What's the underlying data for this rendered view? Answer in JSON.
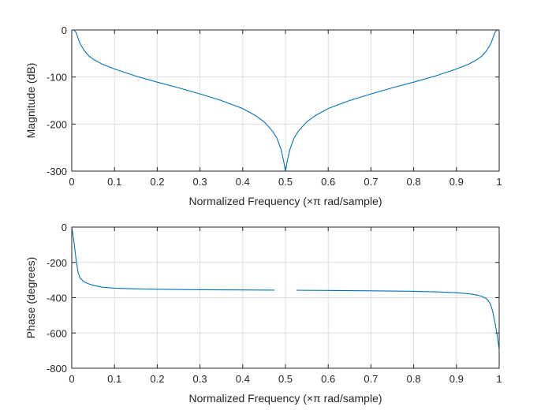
{
  "chart_data": [
    {
      "type": "line",
      "xlabel": "Normalized Frequency  (×π rad/sample)",
      "ylabel": "Magnitude (dB)",
      "xlim": [
        0,
        1
      ],
      "ylim": [
        -300,
        0
      ],
      "xticks": [
        "0",
        "0.1",
        "0.2",
        "0.3",
        "0.4",
        "0.5",
        "0.6",
        "0.7",
        "0.8",
        "0.9",
        "1"
      ],
      "yticks": [
        "0",
        "-100",
        "-200",
        "-300"
      ],
      "yticks_values": [
        0,
        -100,
        -200,
        -300
      ],
      "grid": true,
      "color": "#0072BD",
      "x": [
        0,
        0.005,
        0.01,
        0.015,
        0.02,
        0.03,
        0.04,
        0.05,
        0.07,
        0.1,
        0.15,
        0.2,
        0.25,
        0.3,
        0.35,
        0.4,
        0.43,
        0.45,
        0.47,
        0.48,
        0.49,
        0.495,
        0.5,
        0.505,
        0.51,
        0.52,
        0.53,
        0.55,
        0.57,
        0.6,
        0.65,
        0.7,
        0.75,
        0.8,
        0.85,
        0.9,
        0.93,
        0.95,
        0.96,
        0.97,
        0.98,
        0.985,
        0.99,
        0.995,
        1
      ],
      "y": [
        0,
        0,
        -5,
        -18,
        -30,
        -45,
        -55,
        -62,
        -72,
        -83,
        -98,
        -111,
        -123,
        -136,
        -150,
        -167,
        -182,
        -195,
        -215,
        -230,
        -255,
        -275,
        -300,
        -275,
        -255,
        -230,
        -215,
        -195,
        -182,
        -167,
        -150,
        -136,
        -123,
        -111,
        -98,
        -83,
        -72,
        -62,
        -55,
        -45,
        -30,
        -18,
        -5,
        0,
        0
      ]
    },
    {
      "type": "line",
      "xlabel": "Normalized Frequency  (×π rad/sample)",
      "ylabel": "Phase (degrees)",
      "xlim": [
        0,
        1
      ],
      "ylim": [
        -800,
        0
      ],
      "xticks": [
        "0",
        "0.1",
        "0.2",
        "0.3",
        "0.4",
        "0.5",
        "0.6",
        "0.7",
        "0.8",
        "0.9",
        "1"
      ],
      "yticks": [
        "0",
        "-200",
        "-400",
        "-600",
        "-800"
      ],
      "yticks_values": [
        0,
        -200,
        -400,
        -600,
        -800
      ],
      "grid": true,
      "color": "#0072BD",
      "segments": [
        {
          "x": [
            0,
            0.005,
            0.01,
            0.015,
            0.02,
            0.03,
            0.04,
            0.05,
            0.07,
            0.1,
            0.15,
            0.2,
            0.3,
            0.4,
            0.474
          ],
          "y": [
            0,
            -80,
            -180,
            -260,
            -290,
            -312,
            -322,
            -330,
            -340,
            -346,
            -350,
            -352,
            -355,
            -356,
            -357
          ]
        },
        {
          "x": [
            0.526,
            0.6,
            0.7,
            0.8,
            0.85,
            0.9,
            0.93,
            0.95,
            0.96,
            0.97,
            0.975,
            0.98,
            0.985,
            0.99,
            0.995,
            1
          ],
          "y": [
            -358,
            -359,
            -361,
            -364,
            -367,
            -372,
            -378,
            -386,
            -393,
            -405,
            -418,
            -440,
            -480,
            -540,
            -610,
            -690
          ]
        }
      ]
    }
  ]
}
